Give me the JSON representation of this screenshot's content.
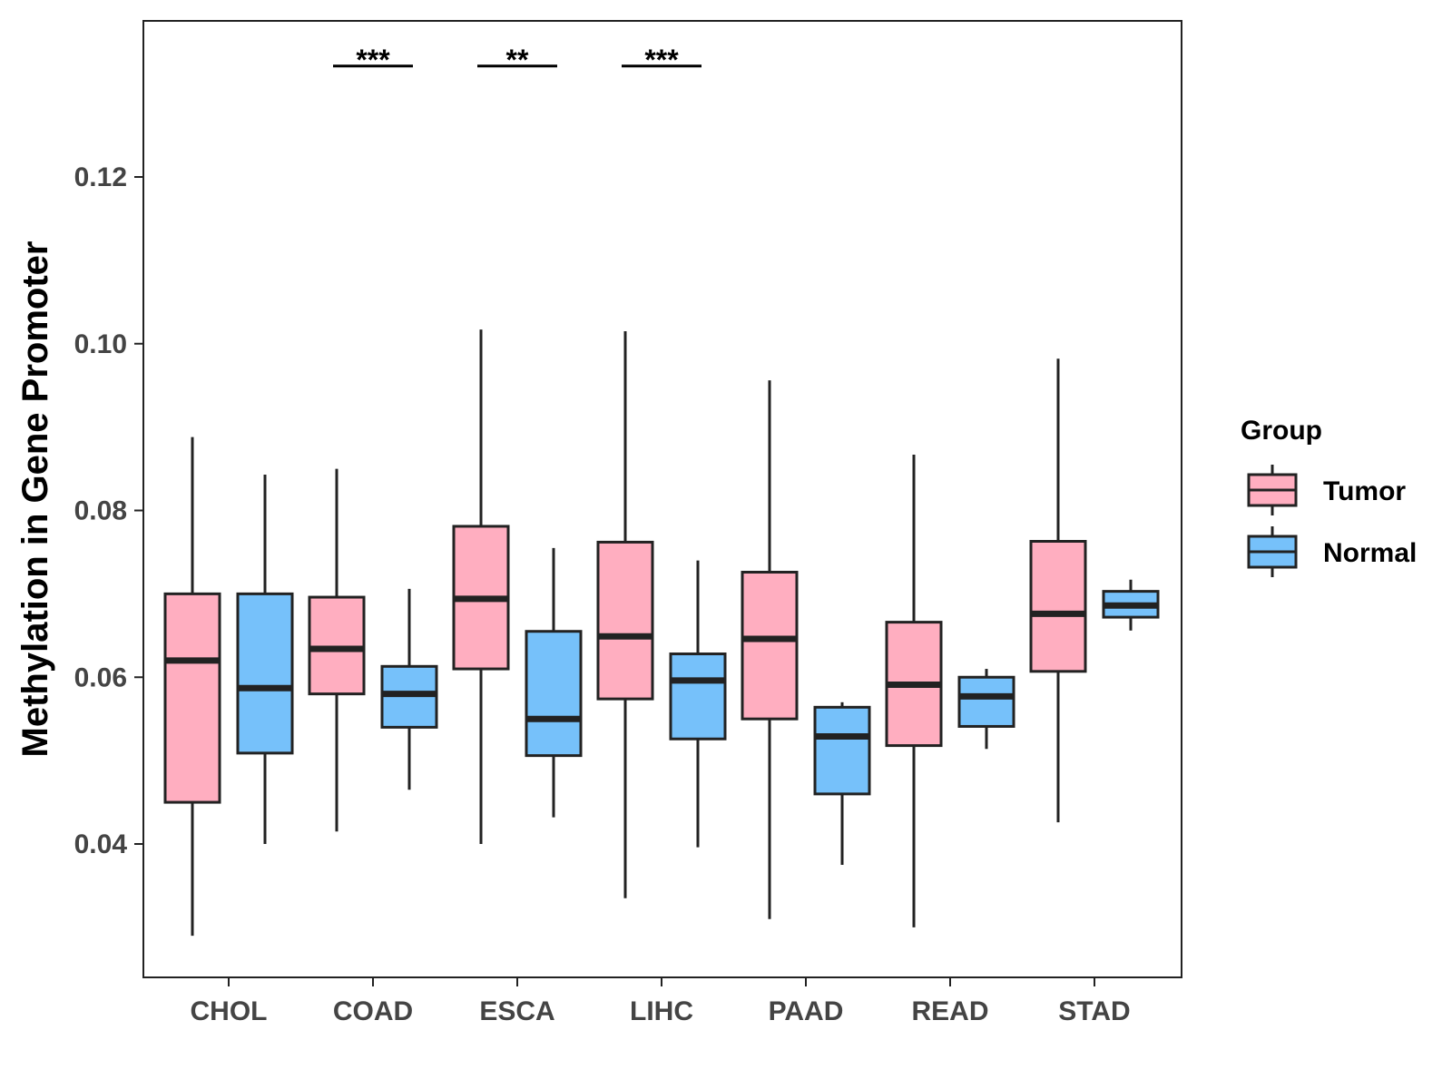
{
  "chart_data": {
    "type": "boxplot",
    "title": "",
    "xlabel": "",
    "ylabel": "Methylation in Gene Promoter",
    "ylim": [
      0.024,
      0.139
    ],
    "yticks": [
      0.04,
      0.06,
      0.08,
      0.1,
      0.12
    ],
    "ytick_labels": [
      "0.04",
      "0.06",
      "0.08",
      "0.10",
      "0.12"
    ],
    "categories": [
      "CHOL",
      "COAD",
      "ESCA",
      "LIHC",
      "PAAD",
      "READ",
      "STAD"
    ],
    "legend": {
      "title": "Group",
      "position": "right",
      "entries": [
        {
          "name": "Tumor",
          "color": "#FFAEC0"
        },
        {
          "name": "Normal",
          "color": "#76C1FA"
        }
      ]
    },
    "series": [
      {
        "name": "Tumor",
        "color": "#FFAEC0",
        "boxes": [
          {
            "category": "CHOL",
            "min": 0.029,
            "q1": 0.045,
            "median": 0.062,
            "q3": 0.07,
            "max": 0.0888
          },
          {
            "category": "COAD",
            "min": 0.0415,
            "q1": 0.058,
            "median": 0.0634,
            "q3": 0.0696,
            "max": 0.085
          },
          {
            "category": "ESCA",
            "min": 0.04,
            "q1": 0.061,
            "median": 0.0694,
            "q3": 0.0781,
            "max": 0.1017
          },
          {
            "category": "LIHC",
            "min": 0.0335,
            "q1": 0.0574,
            "median": 0.0649,
            "q3": 0.0762,
            "max": 0.1015
          },
          {
            "category": "PAAD",
            "min": 0.031,
            "q1": 0.055,
            "median": 0.0646,
            "q3": 0.0726,
            "max": 0.0956
          },
          {
            "category": "READ",
            "min": 0.03,
            "q1": 0.0518,
            "median": 0.0591,
            "q3": 0.0666,
            "max": 0.0867
          },
          {
            "category": "STAD",
            "min": 0.0426,
            "q1": 0.0607,
            "median": 0.0676,
            "q3": 0.0763,
            "max": 0.0982
          }
        ]
      },
      {
        "name": "Normal",
        "color": "#76C1FA",
        "boxes": [
          {
            "category": "CHOL",
            "min": 0.04,
            "q1": 0.0509,
            "median": 0.0587,
            "q3": 0.07,
            "max": 0.0843
          },
          {
            "category": "COAD",
            "min": 0.0465,
            "q1": 0.054,
            "median": 0.058,
            "q3": 0.0613,
            "max": 0.0706
          },
          {
            "category": "ESCA",
            "min": 0.0432,
            "q1": 0.0506,
            "median": 0.055,
            "q3": 0.0655,
            "max": 0.0755
          },
          {
            "category": "LIHC",
            "min": 0.0396,
            "q1": 0.0526,
            "median": 0.0596,
            "q3": 0.0628,
            "max": 0.074
          },
          {
            "category": "PAAD",
            "min": 0.0375,
            "q1": 0.046,
            "median": 0.0529,
            "q3": 0.0564,
            "max": 0.057
          },
          {
            "category": "READ",
            "min": 0.0514,
            "q1": 0.0541,
            "median": 0.0577,
            "q3": 0.06,
            "max": 0.061
          },
          {
            "category": "STAD",
            "min": 0.0656,
            "q1": 0.0672,
            "median": 0.0686,
            "q3": 0.0703,
            "max": 0.0717
          }
        ]
      }
    ],
    "annotations": [
      {
        "category": "COAD",
        "label": "***",
        "y": 0.1333
      },
      {
        "category": "ESCA",
        "label": "**",
        "y": 0.1333
      },
      {
        "category": "LIHC",
        "label": "***",
        "y": 0.1333
      }
    ]
  }
}
